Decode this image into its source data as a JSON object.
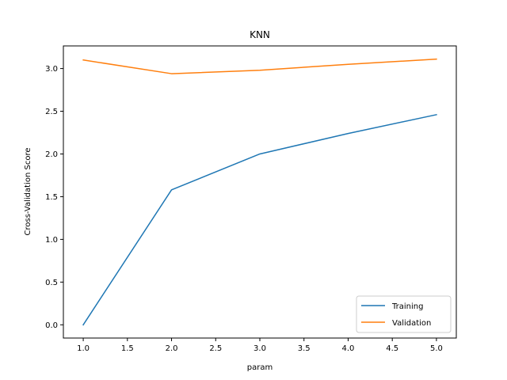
{
  "chart_data": {
    "type": "line",
    "title": "KNN",
    "xlabel": "param",
    "ylabel": "Cross-Validation Score",
    "x": [
      1.0,
      2.0,
      3.0,
      4.0,
      5.0
    ],
    "series": [
      {
        "name": "Training",
        "color": "#1f77b4",
        "values": [
          0.0,
          1.58,
          2.0,
          2.24,
          2.46
        ]
      },
      {
        "name": "Validation",
        "color": "#ff7f0e",
        "values": [
          3.1,
          2.94,
          2.98,
          3.05,
          3.11
        ]
      }
    ],
    "xlim": [
      0.775,
      5.225
    ],
    "ylim": [
      -0.155,
      3.265
    ],
    "xticks": [
      1.0,
      1.5,
      2.0,
      2.5,
      3.0,
      3.5,
      4.0,
      4.5,
      5.0
    ],
    "xtick_labels": [
      "1.0",
      "1.5",
      "2.0",
      "2.5",
      "3.0",
      "3.5",
      "4.0",
      "4.5",
      "5.0"
    ],
    "yticks": [
      0.0,
      0.5,
      1.0,
      1.5,
      2.0,
      2.5,
      3.0
    ],
    "ytick_labels": [
      "0.0",
      "0.5",
      "1.0",
      "1.5",
      "2.0",
      "2.5",
      "3.0"
    ],
    "grid": false,
    "legend_position": "lower-right"
  }
}
